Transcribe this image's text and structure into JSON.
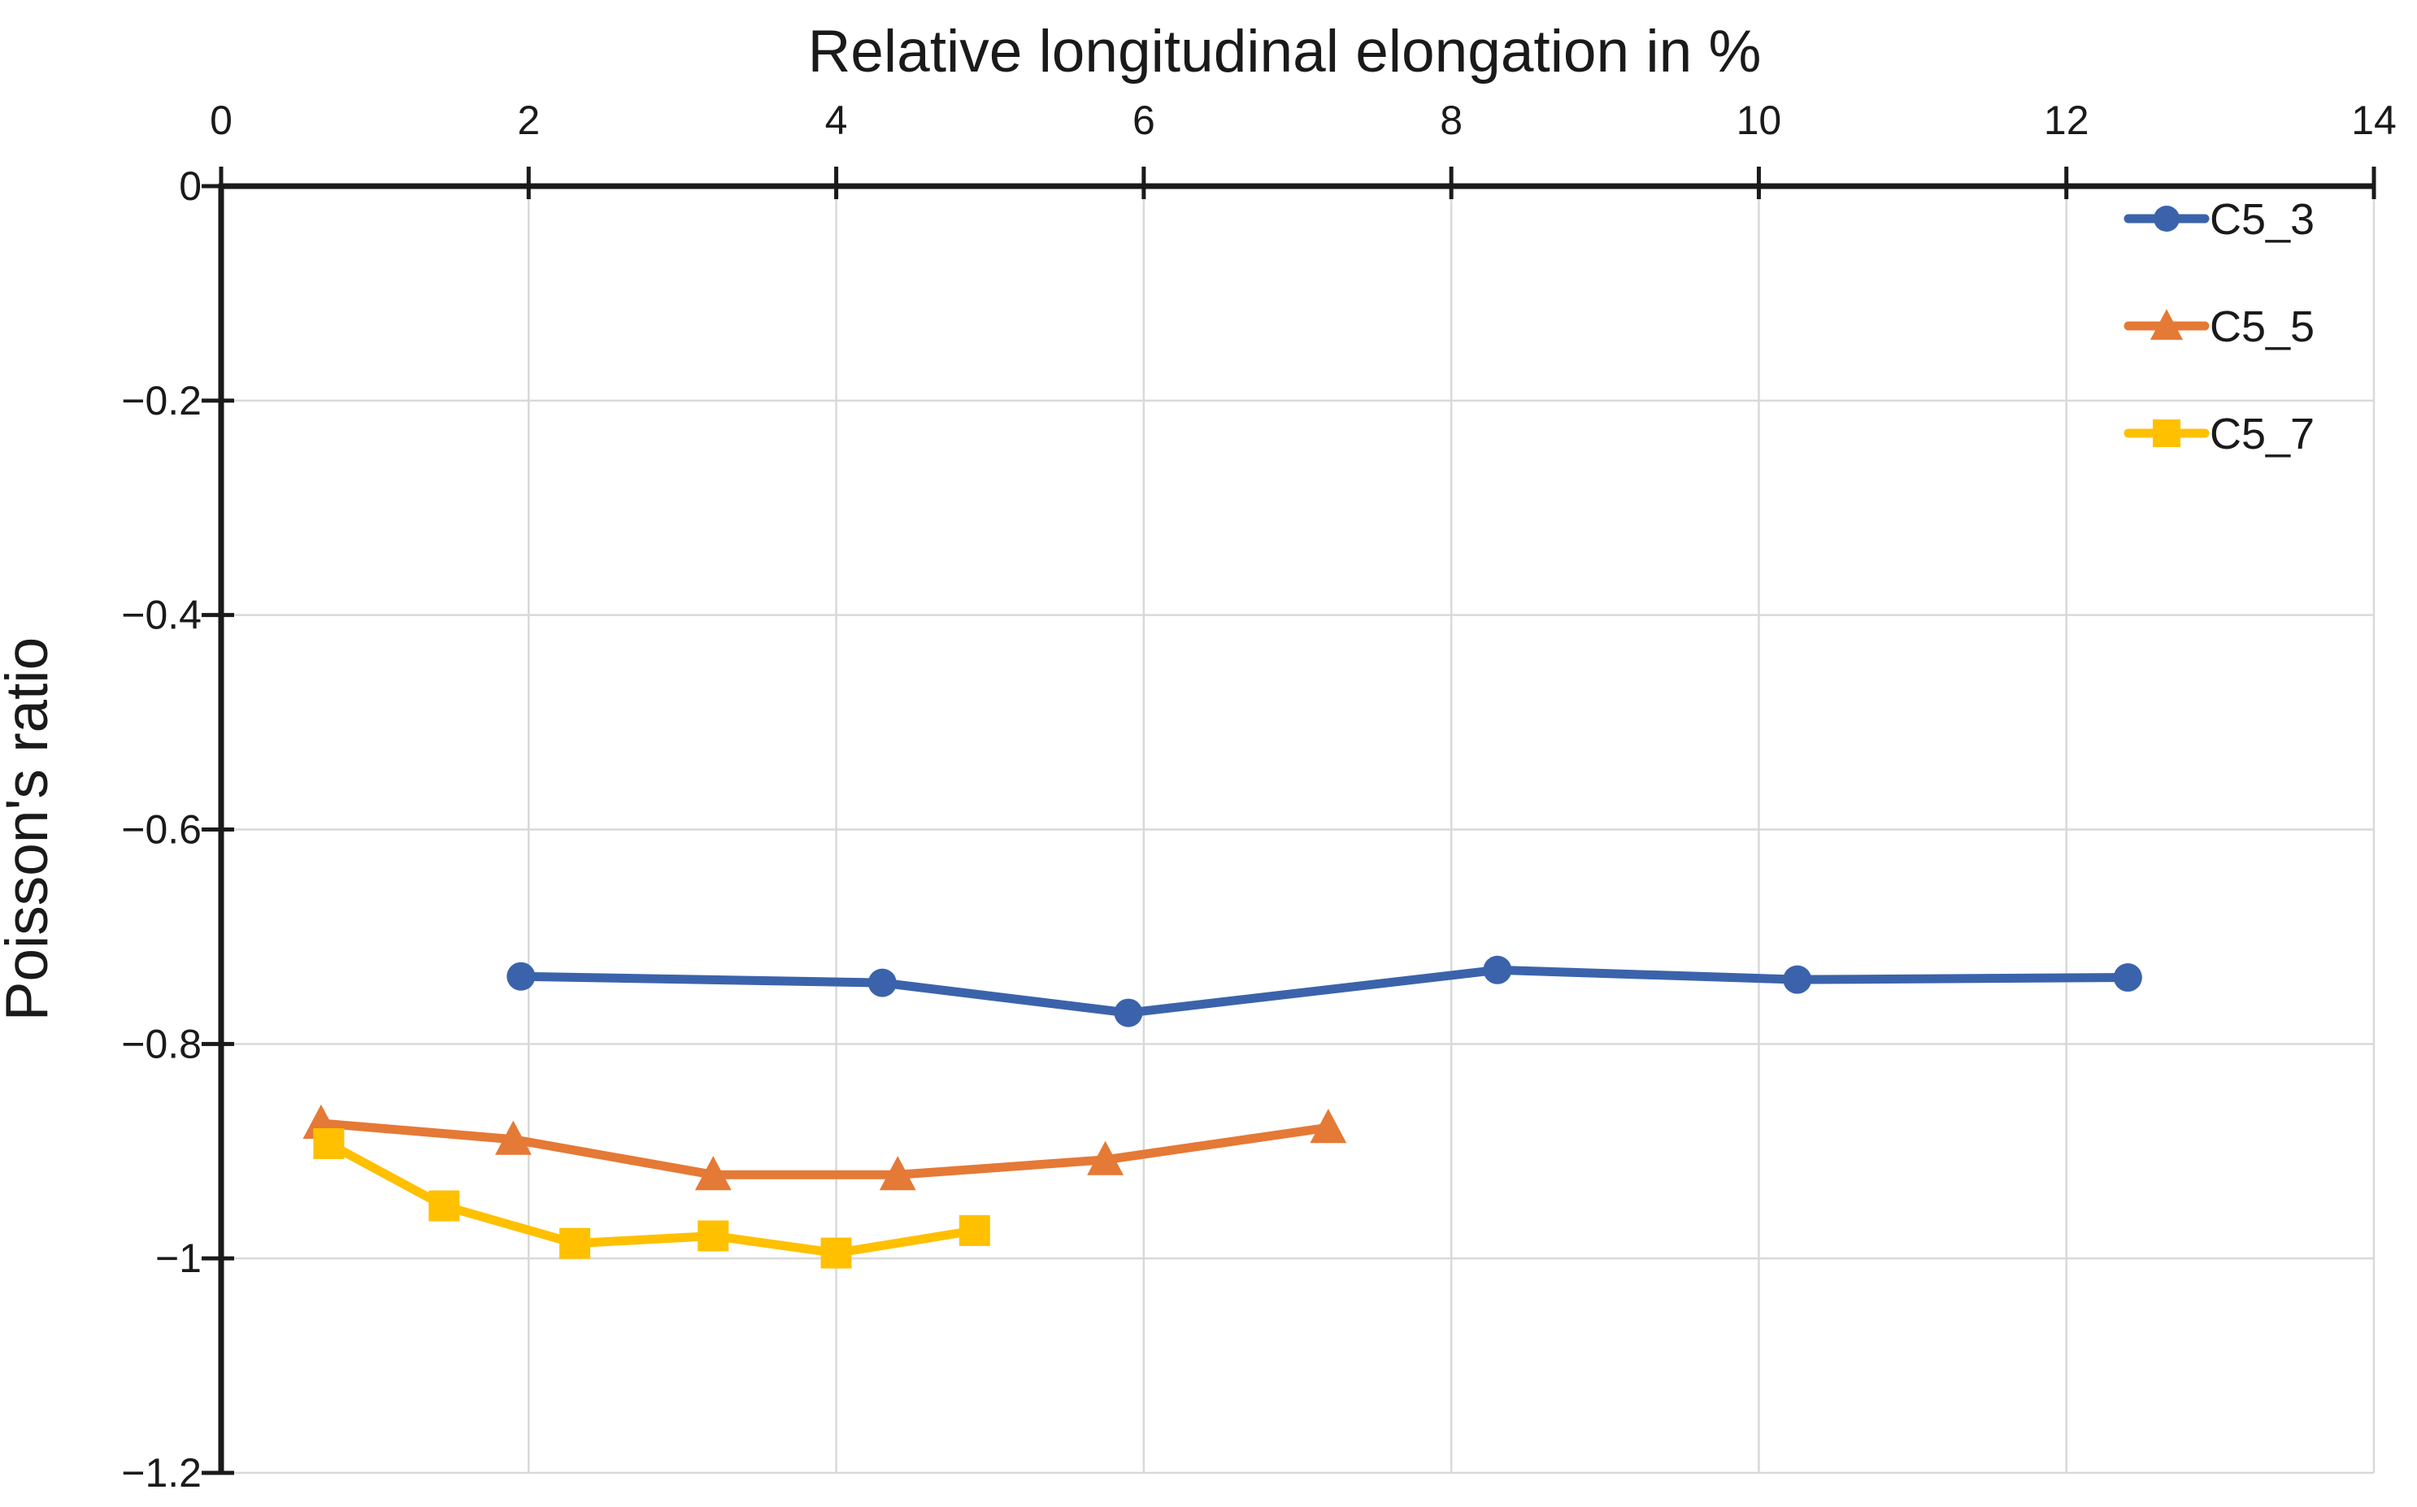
{
  "chart_data": {
    "type": "line",
    "title": "Relative longitudinal elongation in %",
    "xlabel": "",
    "ylabel": "Poisson's ratio",
    "xlim": [
      0,
      14
    ],
    "ylim": [
      -1.2,
      0
    ],
    "x_ticks": [
      0,
      2,
      4,
      6,
      8,
      10,
      12,
      14
    ],
    "x_tick_labels": [
      "0",
      "2",
      "4",
      "6",
      "8",
      "10",
      "12",
      "14"
    ],
    "y_ticks": [
      0,
      -0.2,
      -0.4,
      -0.6,
      -0.8,
      -1,
      -1.2
    ],
    "y_tick_labels": [
      "0",
      "−0.2",
      "−0.4",
      "−0.6",
      "−0.8",
      "−1",
      "−1.2"
    ],
    "grid": true,
    "grid_color": "#D9D9D9",
    "axis_color": "#1A1A1A",
    "text_color": "#1A1A1A",
    "background_color": "#FFFFFF",
    "legend_position": "top-right-inside",
    "series": [
      {
        "name": "C5_3",
        "marker": "circle",
        "color": "#3B63AB",
        "x": [
          1.95,
          4.3,
          5.9,
          8.3,
          10.25,
          12.4
        ],
        "y": [
          -0.737,
          -0.743,
          -0.771,
          -0.731,
          -0.74,
          -0.738
        ]
      },
      {
        "name": "C5_5",
        "marker": "triangle",
        "color": "#E57936",
        "x": [
          0.65,
          1.9,
          3.2,
          4.4,
          5.75,
          7.2
        ],
        "y": [
          -0.874,
          -0.889,
          -0.922,
          -0.922,
          -0.908,
          -0.878
        ]
      },
      {
        "name": "C5_7",
        "marker": "square",
        "color": "#FFC000",
        "x": [
          0.7,
          1.45,
          2.3,
          3.2,
          4.0,
          4.9
        ],
        "y": [
          -0.893,
          -0.951,
          -0.986,
          -0.979,
          -0.995,
          -0.974
        ]
      }
    ]
  }
}
